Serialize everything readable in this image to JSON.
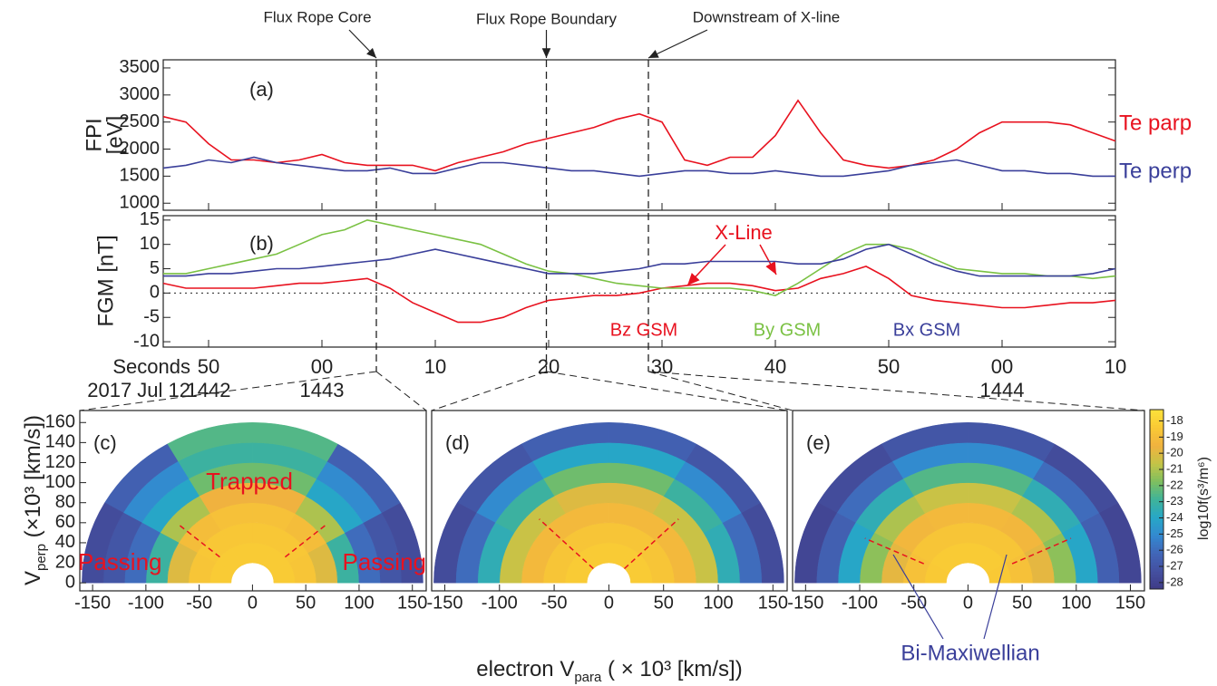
{
  "chart_data": [
    {
      "type": "line",
      "panel_label": "(a)",
      "ylabel": [
        "FPI",
        "[eV]"
      ],
      "x": [
        46,
        48,
        50,
        52,
        54,
        56,
        58,
        60,
        62,
        64,
        66,
        68,
        70,
        72,
        74,
        76,
        78,
        80,
        82,
        84,
        86,
        88,
        90,
        92,
        94,
        96,
        98,
        100,
        102,
        104,
        106,
        108,
        110,
        112,
        114,
        116,
        118,
        120,
        122,
        124,
        126,
        128,
        130
      ],
      "xlim": [
        46,
        130
      ],
      "ylim": [
        870,
        3650
      ],
      "yticks": [
        1000,
        1500,
        2000,
        2500,
        3000,
        3500
      ],
      "events": [
        {
          "x": 64.8,
          "label": "Flux Rope Core"
        },
        {
          "x": 79.8,
          "label": "Flux Rope Boundary"
        },
        {
          "x": 88.8,
          "label": "Downstream of X-line"
        }
      ],
      "series": [
        {
          "name": "Te parp",
          "color": "#e8121f",
          "values": [
            2600,
            2500,
            2100,
            1800,
            1800,
            1750,
            1800,
            1900,
            1750,
            1700,
            1700,
            1700,
            1600,
            1750,
            1850,
            1950,
            2100,
            2200,
            2300,
            2400,
            2550,
            2650,
            2500,
            1800,
            1700,
            1850,
            1850,
            2250,
            2900,
            2300,
            1800,
            1700,
            1650,
            1700,
            1800,
            2000,
            2300,
            2500,
            2500,
            2500,
            2450,
            2300,
            2150
          ]
        },
        {
          "name": "Te perp",
          "color": "#3a3f9a",
          "values": [
            1650,
            1700,
            1800,
            1750,
            1850,
            1750,
            1700,
            1650,
            1600,
            1600,
            1650,
            1550,
            1550,
            1650,
            1750,
            1750,
            1700,
            1650,
            1600,
            1600,
            1550,
            1500,
            1550,
            1600,
            1600,
            1550,
            1550,
            1600,
            1550,
            1500,
            1500,
            1550,
            1600,
            1700,
            1750,
            1800,
            1700,
            1600,
            1600,
            1550,
            1550,
            1500,
            1500
          ]
        }
      ]
    },
    {
      "type": "line",
      "panel_label": "(b)",
      "ylabel": "FGM [nT]",
      "annotation": "X-Line",
      "zero_line": true,
      "x": [
        46,
        48,
        50,
        52,
        54,
        56,
        58,
        60,
        62,
        64,
        66,
        68,
        70,
        72,
        74,
        76,
        78,
        80,
        82,
        84,
        86,
        88,
        90,
        92,
        94,
        96,
        98,
        100,
        102,
        104,
        106,
        108,
        110,
        112,
        114,
        116,
        118,
        120,
        122,
        124,
        126,
        128,
        130
      ],
      "xlim": [
        46,
        130
      ],
      "ylim": [
        -11.1,
        15.9
      ],
      "yticks": [
        -10,
        -5,
        0,
        5,
        10,
        15
      ],
      "xticks": [
        50,
        {
          "value": 60,
          "label": "00"
        },
        {
          "value": 70,
          "label": "10"
        },
        {
          "value": 80,
          "label": "20"
        },
        {
          "value": 90,
          "label": "30"
        },
        {
          "value": 100,
          "label": "40"
        },
        {
          "value": 110,
          "label": "50"
        },
        {
          "value": 120,
          "label": "00"
        },
        {
          "value": 130,
          "label": "10"
        }
      ],
      "xticks_hour": [
        {
          "value": 50,
          "label": "1442"
        },
        {
          "value": 60,
          "label": "1443"
        },
        {
          "value": 120,
          "label": "1444"
        }
      ],
      "xtick_rows": [
        "Seconds",
        "2017 Jul 12"
      ],
      "series": [
        {
          "name": "Bz GSM",
          "color": "#e8121f",
          "values": [
            2,
            1,
            1,
            1,
            1,
            1.5,
            2,
            2,
            2.5,
            3,
            1,
            -2,
            -4,
            -6,
            -6,
            -5,
            -3,
            -1.5,
            -1,
            -0.5,
            -0.5,
            0,
            1,
            1.5,
            2,
            2,
            1.5,
            0.5,
            1,
            3,
            4,
            5.5,
            3,
            -0.5,
            -1.5,
            -2,
            -2.5,
            -3,
            -3,
            -2.5,
            -2,
            -2,
            -1.5
          ]
        },
        {
          "name": "By GSM",
          "color": "#7ac143",
          "values": [
            4,
            4,
            5,
            6,
            7,
            8,
            10,
            12,
            13,
            15,
            14,
            13,
            12,
            11,
            10,
            8,
            6,
            4.5,
            4,
            3,
            2,
            1.5,
            1,
            1,
            1,
            1,
            0.5,
            -0.5,
            2,
            5,
            8,
            10,
            10,
            9,
            7,
            5,
            4.5,
            4,
            4,
            3.5,
            3.5,
            3,
            3.5
          ]
        },
        {
          "name": "Bx GSM",
          "color": "#3a3f9a",
          "values": [
            3.5,
            3.5,
            4,
            4,
            4.5,
            5,
            5,
            5.5,
            6,
            6.5,
            7,
            8,
            9,
            8,
            7,
            6,
            5,
            4,
            4,
            4,
            4.5,
            5,
            6,
            6,
            6.5,
            6.5,
            6.5,
            6.5,
            6,
            6,
            7,
            9,
            10,
            8,
            6,
            4.5,
            3.5,
            3.5,
            3.5,
            3.5,
            3.5,
            4,
            5
          ]
        }
      ]
    },
    {
      "type": "polar-heatmap",
      "panel_label": "(c)",
      "xlim": [
        -162,
        163
      ],
      "ylim": [
        -8,
        172
      ],
      "xticks": [
        -150,
        -100,
        -50,
        0,
        50,
        100,
        150
      ],
      "yticks": [
        0,
        20,
        40,
        60,
        80,
        100,
        120,
        140,
        160
      ],
      "ylabel": {
        "text": "V",
        "sub": "perp",
        "tail": " (×10³ [km/s])"
      },
      "annotations": [
        "Trapped",
        "Passing",
        "Passing"
      ],
      "radii": [
        0,
        20,
        40,
        60,
        80,
        100,
        120,
        140,
        160
      ],
      "angles": [
        0,
        30,
        60,
        90,
        120,
        150,
        180
      ],
      "values": [
        [
          null,
          null,
          null,
          null,
          null,
          null
        ],
        [
          -18.3,
          -18.3,
          -18.3,
          -18.3,
          -18.3,
          -18.3
        ],
        [
          -18.6,
          -18.5,
          -18.5,
          -18.5,
          -18.5,
          -18.6
        ],
        [
          -20,
          -19,
          -18.8,
          -18.8,
          -19,
          -20
        ],
        [
          -23,
          -21,
          -19.5,
          -19.5,
          -21,
          -23
        ],
        [
          -26,
          -24,
          -22,
          -22,
          -24,
          -26
        ],
        [
          -27,
          -25,
          -23,
          -23,
          -25,
          -27
        ],
        [
          -27.5,
          -26.5,
          -22.5,
          -22.5,
          -26.5,
          -27.5
        ]
      ]
    },
    {
      "type": "polar-heatmap",
      "panel_label": "(d)",
      "xlim": [
        -162,
        163
      ],
      "ylim": [
        -8,
        172
      ],
      "xticks": [
        -150,
        -100,
        -50,
        0,
        50,
        100,
        150
      ],
      "xlabel": {
        "text": "electron V",
        "sub": "para",
        "tail": " ( × 10³ [km/s])"
      },
      "radii": [
        0,
        20,
        40,
        60,
        80,
        100,
        120,
        140,
        160
      ],
      "angles": [
        0,
        30,
        60,
        90,
        120,
        150,
        180
      ],
      "values": [
        [
          null,
          null,
          null,
          null,
          null,
          null
        ],
        [
          -18.3,
          -18.3,
          -18.3,
          -18.3,
          -18.3,
          -18.3
        ],
        [
          -18.6,
          -18.6,
          -18.6,
          -18.6,
          -18.6,
          -18.6
        ],
        [
          -19.2,
          -19.2,
          -19.2,
          -19.2,
          -19.2,
          -19.2
        ],
        [
          -20.5,
          -20.5,
          -20,
          -20,
          -20.5,
          -20.5
        ],
        [
          -23.5,
          -23,
          -22,
          -22,
          -23,
          -23.5
        ],
        [
          -26,
          -25,
          -24,
          -24,
          -25,
          -26
        ],
        [
          -27.5,
          -27,
          -26.5,
          -26.5,
          -27,
          -27.5
        ]
      ]
    },
    {
      "type": "polar-heatmap",
      "panel_label": "(e)",
      "xlim": [
        -162,
        163
      ],
      "ylim": [
        -8,
        172
      ],
      "xticks": [
        -150,
        -100,
        -50,
        0,
        50,
        100,
        150
      ],
      "annotations": [
        "Bi-Maxiwellian"
      ],
      "radii": [
        0,
        20,
        40,
        60,
        80,
        100,
        120,
        140,
        160
      ],
      "angles": [
        0,
        30,
        60,
        90,
        120,
        150,
        180
      ],
      "values": [
        [
          null,
          null,
          null,
          null,
          null,
          null
        ],
        [
          -18.4,
          -18.3,
          -18.3,
          -18.3,
          -18.3,
          -18.4
        ],
        [
          -18.8,
          -18.6,
          -18.6,
          -18.6,
          -18.6,
          -18.8
        ],
        [
          -19.8,
          -19.3,
          -19.2,
          -19.2,
          -19.3,
          -19.8
        ],
        [
          -21.5,
          -21,
          -20.5,
          -20.5,
          -21,
          -21.5
        ],
        [
          -24,
          -23.5,
          -22.5,
          -22.5,
          -23.5,
          -24
        ],
        [
          -26.5,
          -26,
          -25,
          -25,
          -26,
          -26.5
        ],
        [
          -27.8,
          -27.5,
          -27,
          -27,
          -27.5,
          -27.8
        ]
      ],
      "colorbar": {
        "label": "log10f(s³/m⁶)",
        "lim": [
          -28.4,
          -17.3
        ],
        "ticks": [
          -18,
          -19,
          -20,
          -21,
          -22,
          -23,
          -24,
          -25,
          -26,
          -27,
          -28
        ],
        "colormap": [
          "#3f3a86",
          "#4450a0",
          "#4166b8",
          "#3389d0",
          "#27a7c7",
          "#3fb39a",
          "#7ebf5f",
          "#c4c447",
          "#f0b23f",
          "#f9c935",
          "#fde13a"
        ]
      }
    }
  ]
}
